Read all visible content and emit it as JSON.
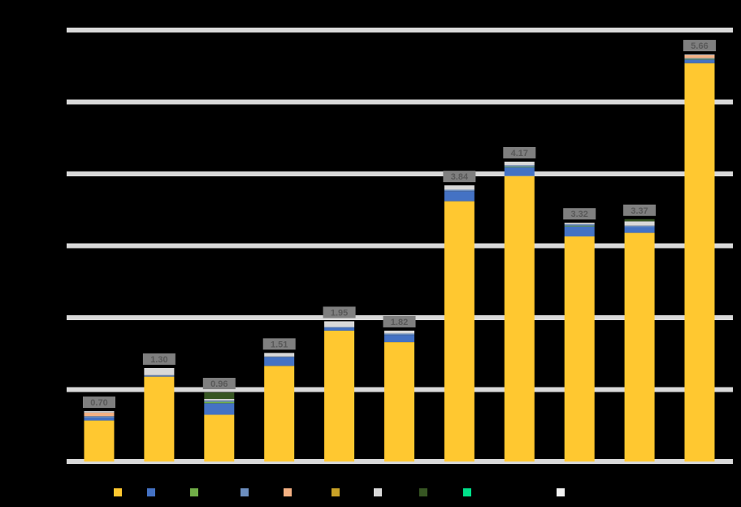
{
  "chart_data": {
    "type": "bar",
    "stacked": true,
    "title": "",
    "xlabel": "",
    "ylabel": "",
    "categories": [
      "",
      "",
      "",
      "",
      "",
      "",
      "",
      "",
      "",
      "",
      ""
    ],
    "ylim": [
      0,
      6
    ],
    "yticks": [
      0,
      1,
      2,
      3,
      4,
      5,
      6
    ],
    "grid": true,
    "legend_position": "bottom",
    "series": [
      {
        "color": "#FFC830",
        "values": [
          0.57,
          1.18,
          0.65,
          1.33,
          1.82,
          1.66,
          3.62,
          3.97,
          3.13,
          3.18,
          5.54
        ]
      },
      {
        "color": "#4472C4",
        "values": [
          0.04,
          0.01,
          0.16,
          0.12,
          0.04,
          0.1,
          0.14,
          0.12,
          0.14,
          0.08,
          0.05
        ]
      },
      {
        "color": "#70AD47",
        "values": [
          0.0,
          0.0,
          0.02,
          0.0,
          0.0,
          0.0,
          0.0,
          0.01,
          0.01,
          0.0,
          0.01
        ]
      },
      {
        "color": "#6C8EBF",
        "values": [
          0.02,
          0.01,
          0.02,
          0.01,
          0.01,
          0.02,
          0.02,
          0.02,
          0.02,
          0.02,
          0.01
        ]
      },
      {
        "color": "#F4B183",
        "values": [
          0.05,
          0.0,
          0.0,
          0.0,
          0.0,
          0.0,
          0.0,
          0.0,
          0.0,
          0.0,
          0.04
        ]
      },
      {
        "color": "#C9A227",
        "values": [
          0.0,
          0.0,
          0.0,
          0.0,
          0.0,
          0.0,
          0.0,
          0.0,
          0.0,
          0.0,
          0.0
        ]
      },
      {
        "color": "#D9D9D9",
        "values": [
          0.02,
          0.1,
          0.02,
          0.05,
          0.08,
          0.04,
          0.06,
          0.05,
          0.02,
          0.06,
          0.01
        ]
      },
      {
        "color": "#375623",
        "values": [
          0.0,
          0.0,
          0.09,
          0.0,
          0.0,
          0.0,
          0.0,
          0.0,
          0.0,
          0.03,
          0.0
        ]
      },
      {
        "color": "#00E08A",
        "values": [
          0.0,
          0.0,
          0.0,
          0.0,
          0.0,
          0.0,
          0.0,
          0.0,
          0.0,
          0.0,
          0.0
        ]
      },
      {
        "color": "#F2F2F2",
        "values": [
          0.0,
          0.0,
          0.0,
          0.0,
          0.0,
          0.0,
          0.0,
          0.0,
          0.0,
          0.0,
          0.0
        ]
      }
    ],
    "data_labels": [
      "0.70",
      "1.30",
      "0.96",
      "1.51",
      "1.95",
      "1.82",
      "3.84",
      "4.17",
      "3.32",
      "3.37",
      "5.66"
    ]
  },
  "style": {
    "background": "#000000",
    "grid_color": "#D9D9D9",
    "label_bg": "#7F7F7F",
    "label_color": "#595959"
  }
}
